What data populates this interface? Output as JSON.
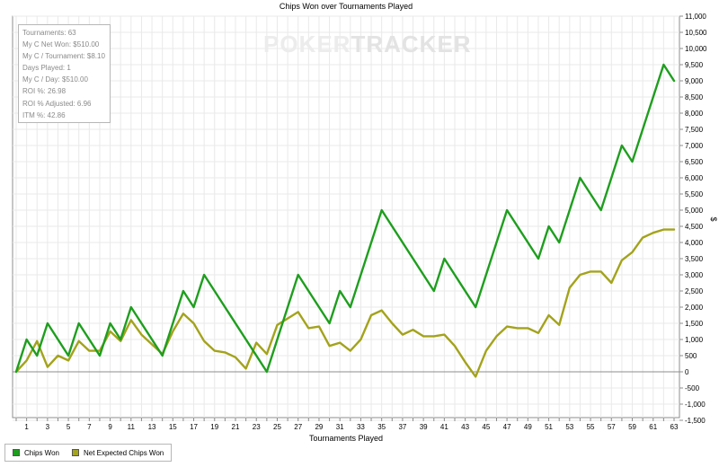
{
  "watermark": {
    "part1": "POKER",
    "part2": "TRACKER"
  },
  "stats": [
    "Tournaments: 63",
    "My C Net Won: $510.00",
    "My C / Tournament: $8.10",
    "Days Played: 1",
    "My C / Day: $510.00",
    "ROI %: 26.98",
    "ROI % Adjusted: 6.96",
    "ITM %: 42.86"
  ],
  "colors": {
    "chips_won": "#1e9e1e",
    "net_expected": "#a3a31c"
  },
  "chart_data": {
    "type": "line",
    "title": "Chips Won over Tournaments Played",
    "xlabel": "Tournaments Played",
    "ylabel": "$",
    "xlim": [
      0,
      63
    ],
    "ylim": [
      -1500,
      11000
    ],
    "grid": true,
    "legend_position": "bottom-left",
    "x_ticks": [
      1,
      3,
      5,
      7,
      9,
      11,
      13,
      15,
      17,
      19,
      21,
      23,
      25,
      27,
      29,
      31,
      33,
      35,
      37,
      39,
      41,
      43,
      45,
      47,
      49,
      51,
      53,
      55,
      57,
      59,
      61,
      63
    ],
    "y_ticks": [
      -1500,
      -1000,
      -500,
      0,
      500,
      1000,
      1500,
      2000,
      2500,
      3000,
      3500,
      4000,
      4500,
      5000,
      5500,
      6000,
      6500,
      7000,
      7500,
      8000,
      8500,
      9000,
      9500,
      10000,
      10500,
      11000
    ],
    "y_tick_labels": [
      "-1,500",
      "-1,000",
      "-500",
      "0",
      "500",
      "1,000",
      "1,500",
      "2,000",
      "2,500",
      "3,000",
      "3,500",
      "4,000",
      "4,500",
      "5,000",
      "5,500",
      "6,000",
      "6,500",
      "7,000",
      "7,500",
      "8,000",
      "8,500",
      "9,000",
      "9,500",
      "10,000",
      "10,500",
      "11,000"
    ],
    "series": [
      {
        "name": "Chips Won",
        "x": [
          0,
          1,
          2,
          3,
          5,
          6,
          8,
          9,
          10,
          11,
          14,
          16,
          17,
          18,
          24,
          27,
          30,
          31,
          32,
          35,
          40,
          41,
          44,
          47,
          50,
          51,
          52,
          54,
          56,
          58,
          59,
          62,
          63
        ],
        "values": [
          0,
          1000,
          500,
          1500,
          500,
          1500,
          500,
          1500,
          1000,
          2000,
          500,
          2500,
          2000,
          3000,
          0,
          3000,
          1500,
          2500,
          2000,
          5000,
          2500,
          3500,
          2000,
          5000,
          3500,
          4500,
          4000,
          6000,
          5000,
          7000,
          6500,
          9500,
          9000
        ]
      },
      {
        "name": "Net Expected Chips Won",
        "x": [
          0,
          1,
          2,
          3,
          4,
          5,
          6,
          7,
          8,
          9,
          10,
          11,
          12,
          13,
          14,
          15,
          16,
          17,
          18,
          19,
          20,
          21,
          22,
          23,
          24,
          25,
          26,
          27,
          28,
          29,
          30,
          31,
          32,
          33,
          34,
          35,
          36,
          37,
          38,
          39,
          40,
          41,
          42,
          43,
          44,
          45,
          46,
          47,
          48,
          49,
          50,
          51,
          52,
          53,
          54,
          55,
          56,
          57,
          58,
          59,
          60,
          61,
          62,
          63
        ],
        "values": [
          0,
          350,
          950,
          150,
          500,
          350,
          950,
          650,
          650,
          1250,
          950,
          1600,
          1150,
          850,
          550,
          1250,
          1800,
          1500,
          950,
          650,
          600,
          450,
          100,
          900,
          550,
          1450,
          1650,
          1850,
          1350,
          1400,
          800,
          900,
          650,
          1000,
          1750,
          1900,
          1500,
          1150,
          1300,
          1100,
          1100,
          1150,
          800,
          300,
          -150,
          650,
          1100,
          1400,
          1350,
          1350,
          1200,
          1750,
          1450,
          2600,
          3000,
          3100,
          3100,
          2750,
          3450,
          3700,
          4150,
          4300,
          4400,
          4400
        ]
      }
    ]
  }
}
